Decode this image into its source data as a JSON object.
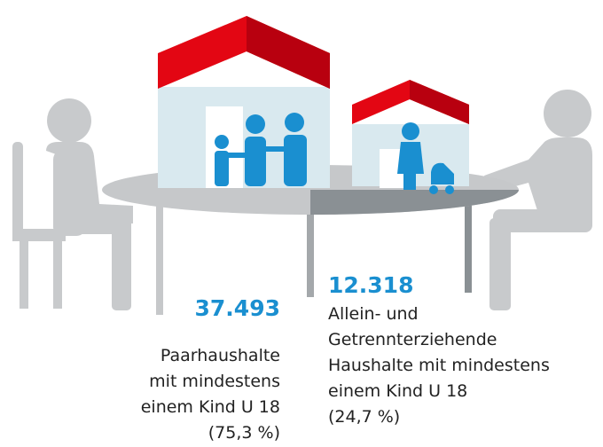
{
  "left": {
    "value": "37.493",
    "lines": [
      "Paarhaushalte",
      "mit mindestens",
      "einem Kind U 18",
      "(75,3 %)"
    ]
  },
  "right": {
    "value": "12.318",
    "lines": [
      "Allein- und",
      "Getrennterziehende",
      "Haushalte mit mindestens",
      "einem Kind U 18",
      "(24,7 %)"
    ]
  }
}
